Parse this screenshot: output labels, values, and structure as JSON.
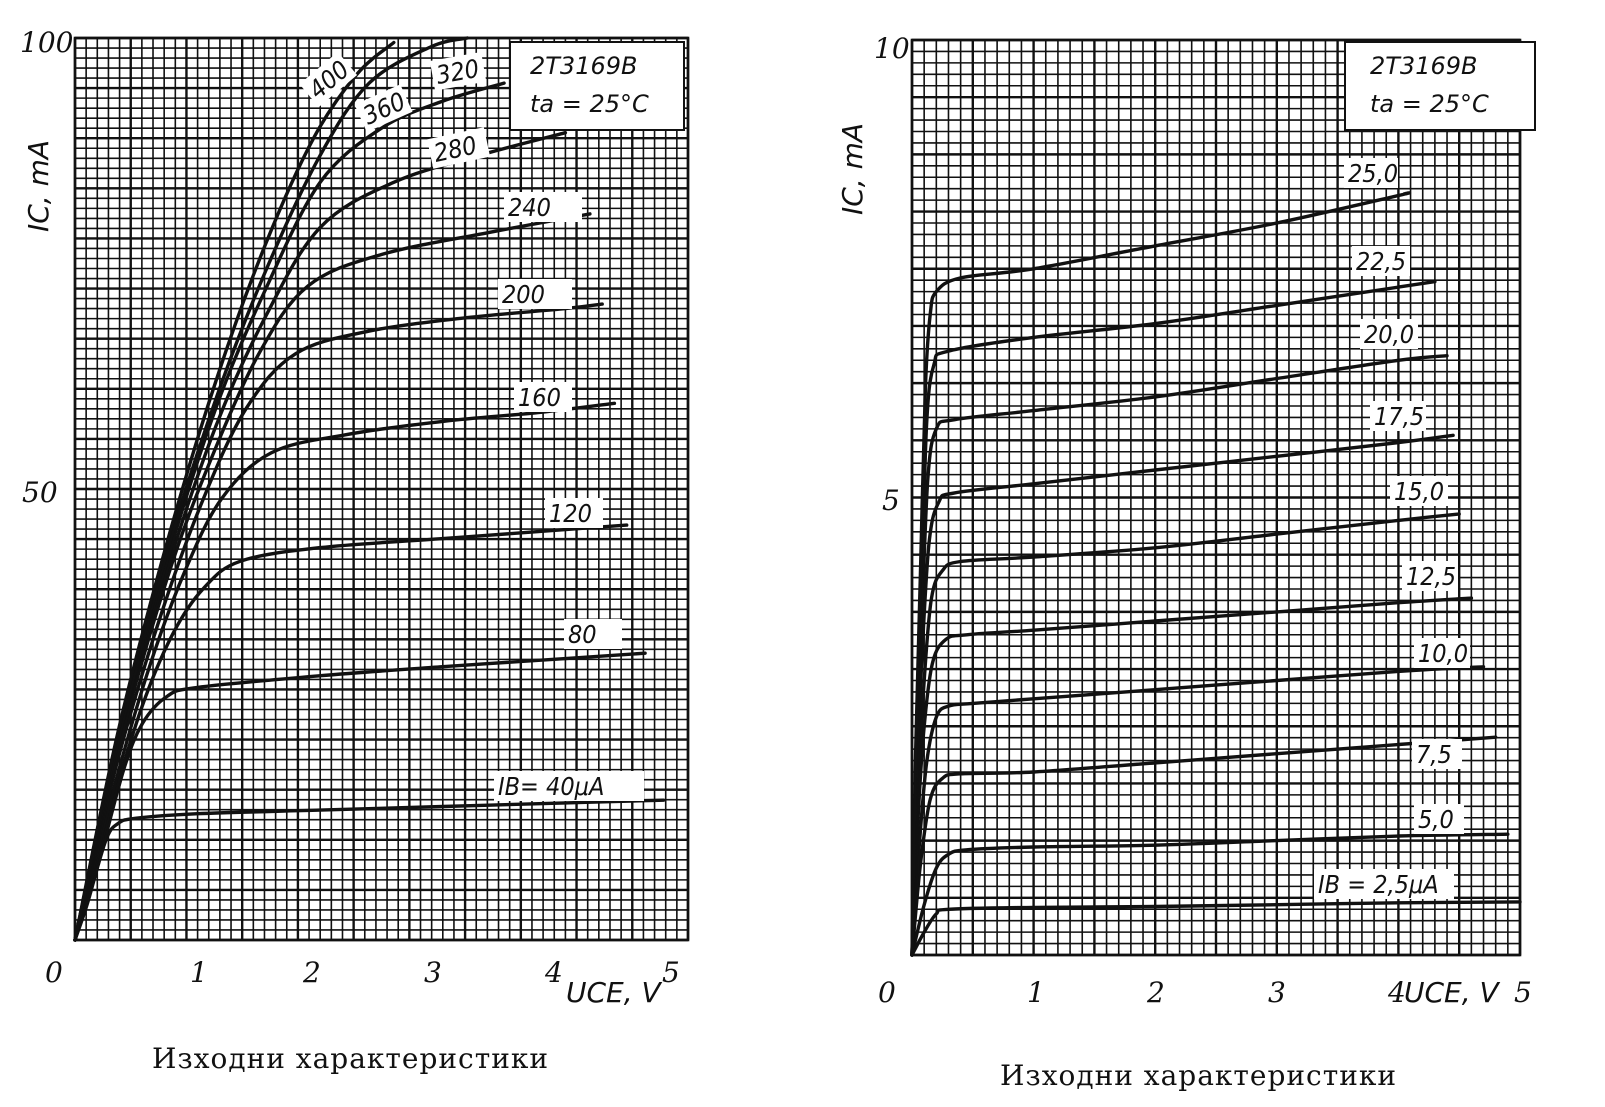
{
  "chart_data": [
    {
      "type": "line",
      "device": "2T3169B",
      "condition": "t_a = 25°C",
      "legend_line1": "2T3169B",
      "legend_line2": "ta = 25°C",
      "xlabel": "UCE, V",
      "ylabel": "IC, mA",
      "caption": "Изходни характеристики",
      "xlim": [
        0,
        5
      ],
      "ylim": [
        0,
        100
      ],
      "x_ticks": [
        "0",
        "1",
        "2",
        "3",
        "4",
        "5"
      ],
      "y_ticks": [
        "0",
        "50",
        "100"
      ],
      "grid": true,
      "series": [
        {
          "label": "IB= 40μA",
          "points": [
            [
              0,
              0
            ],
            [
              0.1,
              4
            ],
            [
              0.25,
              11
            ],
            [
              0.35,
              12.9
            ],
            [
              0.5,
              13.5
            ],
            [
              1,
              14
            ],
            [
              2,
              14.4
            ],
            [
              3,
              14.8
            ],
            [
              4,
              15.2
            ],
            [
              4.8,
              15.5
            ]
          ]
        },
        {
          "label": "80",
          "points": [
            [
              0,
              0
            ],
            [
              0.2,
              9
            ],
            [
              0.4,
              19
            ],
            [
              0.55,
              24
            ],
            [
              0.75,
              27
            ],
            [
              1,
              28
            ],
            [
              2,
              29.3
            ],
            [
              3,
              30.3
            ],
            [
              4,
              31.2
            ],
            [
              4.65,
              31.8
            ]
          ]
        },
        {
          "label": "120",
          "points": [
            [
              0,
              0
            ],
            [
              0.3,
              15
            ],
            [
              0.55,
              26
            ],
            [
              0.8,
              34
            ],
            [
              1.05,
              39
            ],
            [
              1.35,
              42
            ],
            [
              2,
              43.5
            ],
            [
              3,
              44.5
            ],
            [
              4,
              45.5
            ],
            [
              4.5,
              46
            ]
          ]
        },
        {
          "label": "160",
          "points": [
            [
              0,
              0
            ],
            [
              0.3,
              16
            ],
            [
              0.6,
              30
            ],
            [
              0.9,
              41
            ],
            [
              1.2,
              49
            ],
            [
              1.6,
              54
            ],
            [
              2.2,
              56
            ],
            [
              3,
              57.5
            ],
            [
              3.8,
              58.5
            ],
            [
              4.4,
              59.5
            ]
          ]
        },
        {
          "label": "200",
          "points": [
            [
              0,
              0
            ],
            [
              0.35,
              20
            ],
            [
              0.7,
              36
            ],
            [
              1.05,
              49
            ],
            [
              1.4,
              59
            ],
            [
              1.8,
              65
            ],
            [
              2.4,
              67.5
            ],
            [
              3.2,
              69
            ],
            [
              4,
              70
            ],
            [
              4.3,
              70.5
            ]
          ]
        },
        {
          "label": "240",
          "points": [
            [
              0,
              0
            ],
            [
              0.35,
              21
            ],
            [
              0.75,
              40
            ],
            [
              1.1,
              53
            ],
            [
              1.5,
              65
            ],
            [
              1.9,
              72.5
            ],
            [
              2.5,
              76
            ],
            [
              3.4,
              78.5
            ],
            [
              4.2,
              80.5
            ]
          ]
        },
        {
          "label": "280",
          "points": [
            [
              0,
              0
            ],
            [
              0.35,
              22
            ],
            [
              0.75,
              41
            ],
            [
              1.15,
              57
            ],
            [
              1.55,
              69
            ],
            [
              2,
              79
            ],
            [
              2.6,
              84
            ],
            [
              3.3,
              87
            ],
            [
              4,
              89.5
            ]
          ]
        },
        {
          "label": "320",
          "points": [
            [
              0,
              0
            ],
            [
              0.35,
              22
            ],
            [
              0.75,
              42
            ],
            [
              1.15,
              59
            ],
            [
              1.55,
              72
            ],
            [
              2,
              84
            ],
            [
              2.5,
              90
            ],
            [
              3,
              93
            ],
            [
              3.5,
              95
            ]
          ]
        },
        {
          "label": "360",
          "points": [
            [
              0,
              0
            ],
            [
              0.35,
              22
            ],
            [
              0.75,
              43
            ],
            [
              1.15,
              60
            ],
            [
              1.55,
              74
            ],
            [
              2,
              87
            ],
            [
              2.4,
              95
            ],
            [
              2.9,
              99
            ],
            [
              3.2,
              100
            ]
          ]
        },
        {
          "label": "400",
          "points": [
            [
              0,
              0
            ],
            [
              0.35,
              23
            ],
            [
              0.75,
              44
            ],
            [
              1.15,
              62
            ],
            [
              1.55,
              77
            ],
            [
              1.95,
              89
            ],
            [
              2.3,
              96
            ],
            [
              2.6,
              99.5
            ]
          ]
        }
      ]
    },
    {
      "type": "line",
      "device": "2T3169B",
      "condition": "t_a = 25°C",
      "legend_line1": "2T3169B",
      "legend_line2": "ta = 25°C",
      "xlabel": "UCE, V",
      "ylabel": "IC, mA",
      "caption": "Изходни характеристики",
      "xlim": [
        0,
        5
      ],
      "ylim": [
        0,
        10
      ],
      "x_ticks": [
        "0",
        "1",
        "2",
        "3",
        "4",
        "5"
      ],
      "y_ticks": [
        "0",
        "5",
        "10"
      ],
      "grid": true,
      "series": [
        {
          "label": "IB = 2,5μA",
          "points": [
            [
              0,
              0
            ],
            [
              0.1,
              0.25
            ],
            [
              0.2,
              0.45
            ],
            [
              0.3,
              0.5
            ],
            [
              1,
              0.52
            ],
            [
              2,
              0.53
            ],
            [
              3,
              0.55
            ],
            [
              4,
              0.57
            ],
            [
              5,
              0.58
            ]
          ]
        },
        {
          "label": "5,0",
          "points": [
            [
              0,
              0
            ],
            [
              0.1,
              0.55
            ],
            [
              0.2,
              0.95
            ],
            [
              0.3,
              1.1
            ],
            [
              0.45,
              1.15
            ],
            [
              1,
              1.18
            ],
            [
              2,
              1.2
            ],
            [
              3,
              1.25
            ],
            [
              4,
              1.3
            ],
            [
              4.9,
              1.32
            ]
          ]
        },
        {
          "label": "7,5",
          "points": [
            [
              0,
              0
            ],
            [
              0.07,
              1
            ],
            [
              0.15,
              1.7
            ],
            [
              0.25,
              1.93
            ],
            [
              0.4,
              1.98
            ],
            [
              1,
              2
            ],
            [
              2,
              2.1
            ],
            [
              3,
              2.2
            ],
            [
              4,
              2.3
            ],
            [
              4.8,
              2.38
            ]
          ]
        },
        {
          "label": "10,0",
          "points": [
            [
              0,
              0
            ],
            [
              0.06,
              1.2
            ],
            [
              0.12,
              2.1
            ],
            [
              0.2,
              2.6
            ],
            [
              0.3,
              2.72
            ],
            [
              0.5,
              2.75
            ],
            [
              1,
              2.8
            ],
            [
              2,
              2.9
            ],
            [
              3,
              3
            ],
            [
              4,
              3.1
            ],
            [
              4.7,
              3.15
            ]
          ]
        },
        {
          "label": "12,5",
          "points": [
            [
              0,
              0
            ],
            [
              0.05,
              1.5
            ],
            [
              0.1,
              2.5
            ],
            [
              0.17,
              3.2
            ],
            [
              0.28,
              3.45
            ],
            [
              0.45,
              3.5
            ],
            [
              1,
              3.55
            ],
            [
              2,
              3.65
            ],
            [
              3,
              3.75
            ],
            [
              4,
              3.85
            ],
            [
              4.6,
              3.9
            ]
          ]
        },
        {
          "label": "15,0",
          "points": [
            [
              0,
              0
            ],
            [
              0.05,
              1.8
            ],
            [
              0.1,
              3
            ],
            [
              0.16,
              3.9
            ],
            [
              0.25,
              4.2
            ],
            [
              0.4,
              4.3
            ],
            [
              1,
              4.35
            ],
            [
              2,
              4.45
            ],
            [
              3,
              4.6
            ],
            [
              4,
              4.75
            ],
            [
              4.5,
              4.82
            ]
          ]
        },
        {
          "label": "17,5",
          "points": [
            [
              0,
              0
            ],
            [
              0.04,
              1.8
            ],
            [
              0.08,
              3.2
            ],
            [
              0.14,
              4.5
            ],
            [
              0.22,
              4.95
            ],
            [
              0.35,
              5.05
            ],
            [
              1,
              5.15
            ],
            [
              2,
              5.3
            ],
            [
              3,
              5.45
            ],
            [
              4,
              5.6
            ],
            [
              4.45,
              5.68
            ]
          ]
        },
        {
          "label": "20,0",
          "points": [
            [
              0,
              0
            ],
            [
              0.04,
              2
            ],
            [
              0.08,
              3.6
            ],
            [
              0.13,
              5.2
            ],
            [
              0.2,
              5.75
            ],
            [
              0.35,
              5.85
            ],
            [
              1,
              5.95
            ],
            [
              2,
              6.1
            ],
            [
              3,
              6.3
            ],
            [
              4,
              6.5
            ],
            [
              4.4,
              6.55
            ]
          ]
        },
        {
          "label": "22,5",
          "points": [
            [
              0,
              0
            ],
            [
              0.04,
              2.2
            ],
            [
              0.08,
              4
            ],
            [
              0.12,
              5.8
            ],
            [
              0.18,
              6.45
            ],
            [
              0.3,
              6.6
            ],
            [
              1,
              6.75
            ],
            [
              2,
              6.9
            ],
            [
              3,
              7.1
            ],
            [
              4,
              7.3
            ],
            [
              4.3,
              7.36
            ]
          ]
        },
        {
          "label": "25,0",
          "points": [
            [
              0,
              0
            ],
            [
              0.03,
              2.2
            ],
            [
              0.07,
              4.2
            ],
            [
              0.11,
              6.2
            ],
            [
              0.15,
              7
            ],
            [
              0.2,
              7.25
            ],
            [
              0.4,
              7.4
            ],
            [
              1,
              7.5
            ],
            [
              2,
              7.75
            ],
            [
              3,
              8
            ],
            [
              4,
              8.3
            ],
            [
              4.05,
              8.32
            ]
          ]
        }
      ]
    }
  ]
}
